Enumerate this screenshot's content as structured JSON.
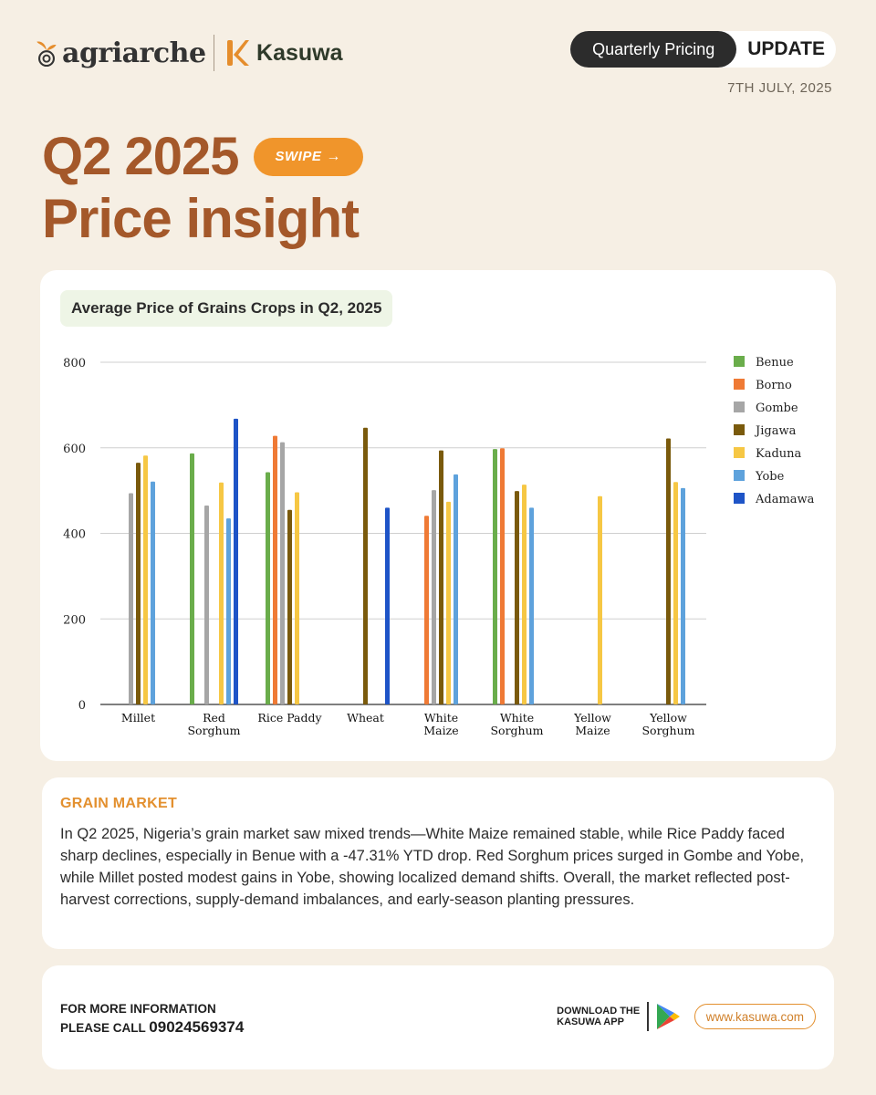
{
  "header": {
    "brand1": "agriarche",
    "brand2": "Kasuwa",
    "pill_dark": "Quarterly Pricing",
    "pill_light": "UPDATE",
    "date": "7TH JULY, 2025"
  },
  "headline": {
    "line1": "Q2 2025",
    "line2": "Price insight",
    "swipe": "SWIPE"
  },
  "chart_data": {
    "type": "bar",
    "title": "Average Price of Grains Crops in Q2, 2025",
    "xlabel": "",
    "ylabel": "",
    "ylim": [
      0,
      800
    ],
    "yticks": [
      "0",
      "200",
      "400",
      "600",
      "800"
    ],
    "grid": true,
    "legend_position": "right",
    "categories": [
      [
        "Millet"
      ],
      [
        "Red",
        "Sorghum"
      ],
      [
        "Rice Paddy"
      ],
      [
        "Wheat"
      ],
      [
        "White",
        "Maize"
      ],
      [
        "White",
        "Sorghum"
      ],
      [
        "Yellow",
        "Maize"
      ],
      [
        "Yellow",
        "Sorghum"
      ]
    ],
    "series": [
      {
        "name": "Benue",
        "color": "#6aad4b",
        "values": [
          null,
          587,
          543,
          null,
          null,
          597,
          null,
          null
        ]
      },
      {
        "name": "Borno",
        "color": "#ef7a35",
        "values": [
          null,
          null,
          628,
          null,
          441,
          599,
          null,
          null
        ]
      },
      {
        "name": "Gombe",
        "color": "#a6a6a6",
        "values": [
          494,
          465,
          613,
          null,
          501,
          null,
          null,
          null
        ]
      },
      {
        "name": "Jigawa",
        "color": "#7a5a0c",
        "values": [
          565,
          null,
          455,
          647,
          594,
          499,
          null,
          622
        ]
      },
      {
        "name": "Kaduna",
        "color": "#f6c744",
        "values": [
          582,
          519,
          496,
          null,
          474,
          514,
          487,
          520
        ]
      },
      {
        "name": "Yobe",
        "color": "#5ea2dc",
        "values": [
          521,
          435,
          null,
          null,
          538,
          460,
          null,
          506
        ]
      },
      {
        "name": "Adamawa",
        "color": "#1e54c7",
        "values": [
          null,
          668,
          null,
          460,
          null,
          null,
          null,
          null
        ]
      }
    ]
  },
  "market": {
    "heading": "GRAIN MARKET",
    "body": "In Q2 2025, Nigeria’s grain market saw mixed trends—White Maize remained stable, while Rice Paddy faced sharp declines, especially in Benue with a -47.31% YTD drop. Red Sorghum prices surged in Gombe and Yobe, while Millet posted modest gains in Yobe, showing localized demand shifts. Overall, the market reflected post-harvest corrections, supply-demand imbalances, and early-season planting pressures."
  },
  "footer": {
    "info_line1": "FOR MORE INFORMATION",
    "info_line2": "PLEASE CALL",
    "phone": "09024569374",
    "download_line1": "DOWNLOAD THE",
    "download_line2": "KASUWA APP",
    "website": "www.kasuwa.com"
  }
}
